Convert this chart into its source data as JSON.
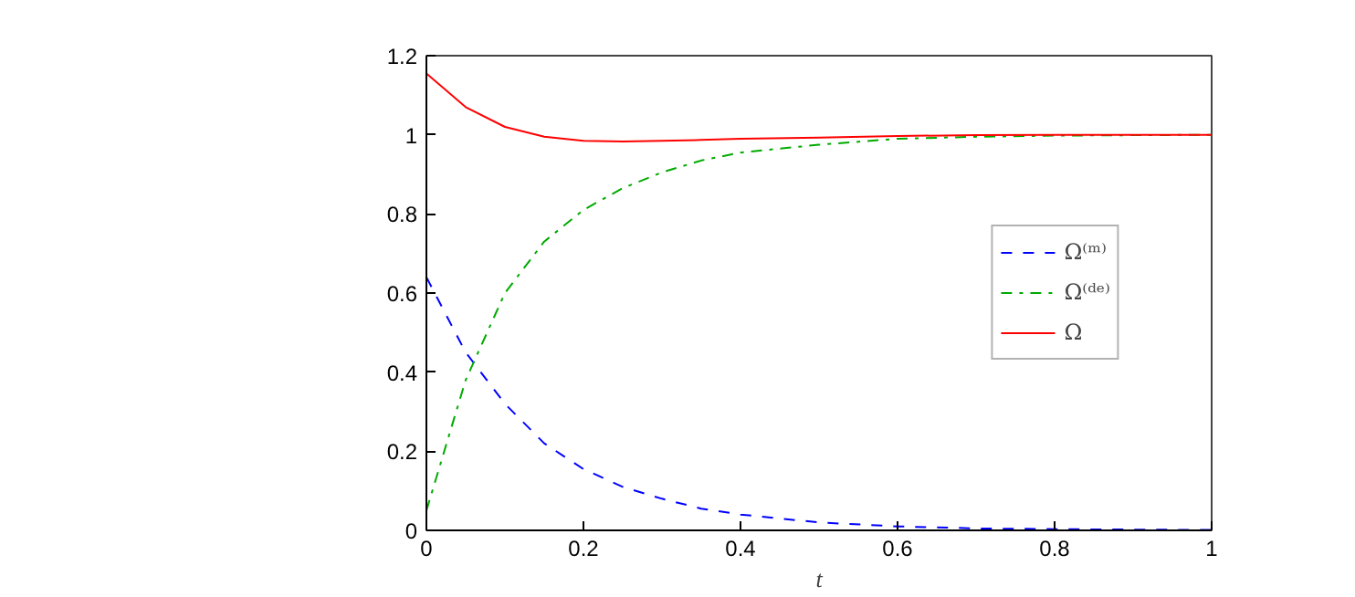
{
  "chart_data": {
    "type": "line",
    "xlabel": "t",
    "xlim": [
      0,
      1
    ],
    "ylim": [
      0,
      1.2
    ],
    "xticks": [
      0,
      0.2,
      0.4,
      0.6,
      0.8,
      1
    ],
    "yticks": [
      0,
      0.2,
      0.4,
      0.6,
      0.8,
      1,
      1.2
    ],
    "grid": false,
    "legend": "right",
    "x": [
      0,
      0.05,
      0.1,
      0.15,
      0.2,
      0.25,
      0.3,
      0.35,
      0.4,
      0.5,
      0.6,
      0.7,
      0.8,
      0.9,
      1
    ],
    "series": [
      {
        "name": "Ω⁽ᵐ⁾",
        "color": "#0000ff",
        "line_style": "dashed",
        "values": [
          0.64,
          0.45,
          0.32,
          0.22,
          0.155,
          0.11,
          0.08,
          0.055,
          0.04,
          0.02,
          0.01,
          0.005,
          0.003,
          0.002,
          0.001
        ]
      },
      {
        "name": "Ω⁽ᵈᵉ⁾",
        "color": "#00aa00",
        "line_style": "dashdot",
        "values": [
          0.05,
          0.38,
          0.6,
          0.73,
          0.81,
          0.865,
          0.905,
          0.935,
          0.955,
          0.975,
          0.99,
          0.995,
          0.998,
          null,
          1
        ]
      },
      {
        "name": "Ω",
        "color": "#ff0000",
        "line_style": "solid",
        "values": [
          1.155,
          1.07,
          1.02,
          0.995,
          0.985,
          0.983,
          0.985,
          0.987,
          0.99,
          0.993,
          0.997,
          0.999,
          1,
          1,
          1
        ]
      }
    ]
  }
}
